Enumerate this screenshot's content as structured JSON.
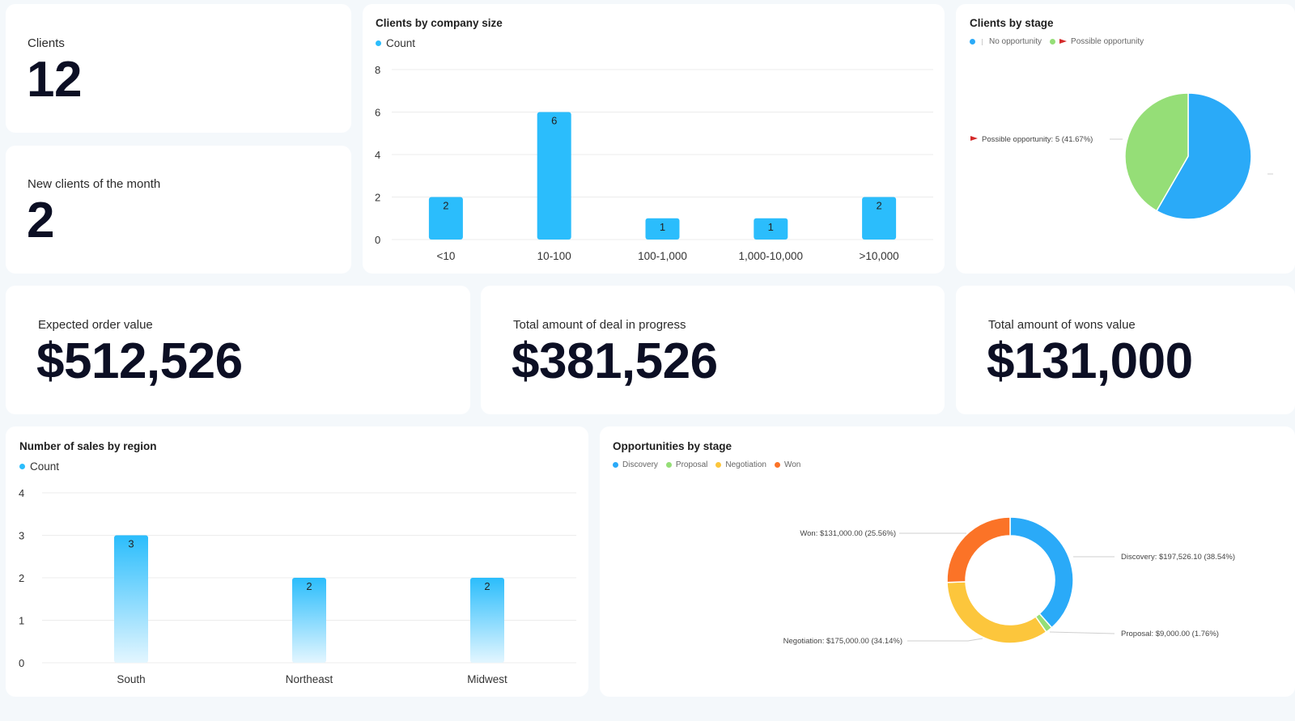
{
  "stats": {
    "clients": {
      "label": "Clients",
      "value": "12"
    },
    "new_clients": {
      "label": "New clients of the month",
      "value": "2"
    },
    "expected_order": {
      "label": "Expected order value",
      "value": "$512,526"
    },
    "deal_in_progress": {
      "label": "Total amount of deal in progress",
      "value": "$381,526"
    },
    "wons_value": {
      "label": "Total amount of wons value",
      "value": "$131,000"
    }
  },
  "colors": {
    "blue": "#2bbdfc",
    "pie_blue": "#2aaaf8",
    "green": "#95de77",
    "yellow": "#fcc63c",
    "orange": "#fb7327",
    "red_flag": "#d42a2a"
  },
  "icons": {
    "legend_marker": "circle-icon",
    "flag": "flag-icon"
  },
  "chart_data": [
    {
      "type": "bar",
      "title": "Clients by company size",
      "categories": [
        "<10",
        "10-100",
        "100-1,000",
        "1,000-10,000",
        ">10,000"
      ],
      "series": [
        {
          "name": "Count",
          "values": [
            2,
            6,
            1,
            1,
            2
          ]
        }
      ],
      "yticks": [
        "0",
        "2",
        "4",
        "6",
        "8"
      ],
      "ylim": [
        0,
        8
      ],
      "grid": true,
      "legend": "top-left"
    },
    {
      "type": "pie",
      "title": "Clients by stage",
      "legend_items": [
        "No opportunity",
        "Possible opportunity"
      ],
      "slices": [
        {
          "name": "No opportunity",
          "value": 7,
          "percent": 58.33
        },
        {
          "name": "Possible opportunity",
          "value": 5,
          "percent": 41.67
        }
      ],
      "labels": [
        "Possible opportunity: 5 (41.67%)"
      ],
      "legend": "top-left"
    },
    {
      "type": "bar",
      "title": "Number of sales by region",
      "categories": [
        "South",
        "Northeast",
        "Midwest"
      ],
      "series": [
        {
          "name": "Count",
          "values": [
            3,
            2,
            2
          ]
        }
      ],
      "yticks": [
        "0",
        "1",
        "2",
        "3",
        "4"
      ],
      "ylim": [
        0,
        4
      ],
      "grid": true,
      "legend": "top-left"
    },
    {
      "type": "pie",
      "title": "Opportunities by stage",
      "legend_items": [
        "Discovery",
        "Proposal",
        "Negotiation",
        "Won"
      ],
      "slices": [
        {
          "name": "Discovery",
          "value": 197526.1,
          "percent": 38.54
        },
        {
          "name": "Proposal",
          "value": 9000.0,
          "percent": 1.76
        },
        {
          "name": "Negotiation",
          "value": 175000.0,
          "percent": 34.14
        },
        {
          "name": "Won",
          "value": 131000.0,
          "percent": 25.56
        }
      ],
      "labels": [
        "Discovery: $197,526.10 (38.54%)",
        "Proposal: $9,000.00 (1.76%)",
        "Negotiation: $175,000.00 (34.14%)",
        "Won: $131,000.00 (25.56%)"
      ],
      "legend": "top-left"
    }
  ]
}
